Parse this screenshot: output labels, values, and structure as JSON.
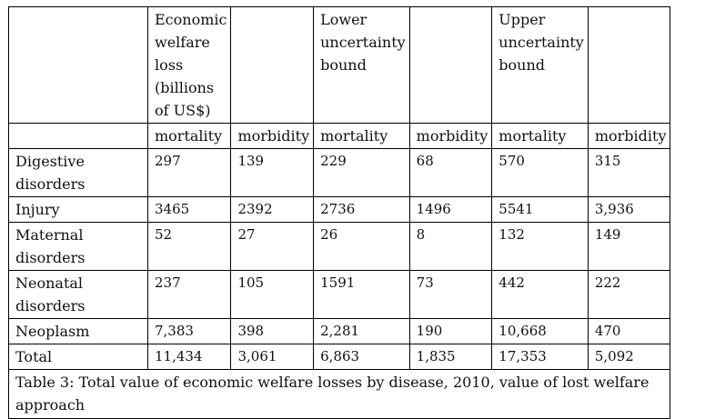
{
  "table": {
    "group_headers": [
      "",
      "Economic welfare loss (billions of US$)",
      "",
      "Lower uncertainty bound",
      "",
      "Upper uncertainty bound",
      ""
    ],
    "sub_headers": [
      "",
      "mortality",
      "morbidity",
      "mortality",
      "morbidity",
      "mortality",
      "morbidity"
    ],
    "rows": [
      {
        "label": "Digestive disorders",
        "values": [
          "297",
          "139",
          "229",
          "68",
          "570",
          "315"
        ]
      },
      {
        "label": "Injury",
        "values": [
          "3465",
          "2392",
          "2736",
          "1496",
          "5541",
          "3,936"
        ]
      },
      {
        "label": "Maternal disorders",
        "values": [
          "52",
          "27",
          "26",
          "8",
          "132",
          "149"
        ]
      },
      {
        "label": "Neonatal disorders",
        "values": [
          "237",
          "105",
          "1591",
          "73",
          "442",
          "222"
        ]
      },
      {
        "label": "Neoplasm",
        "values": [
          "7,383",
          "398",
          "2,281",
          "190",
          "10,668",
          "470"
        ]
      },
      {
        "label": "Total",
        "values": [
          "11,434",
          "3,061",
          "6,863",
          "1,835",
          "17,353",
          "5,092"
        ]
      }
    ],
    "caption": "Table 3: Total value of economic welfare losses by disease, 2010, value of lost welfare approach"
  }
}
